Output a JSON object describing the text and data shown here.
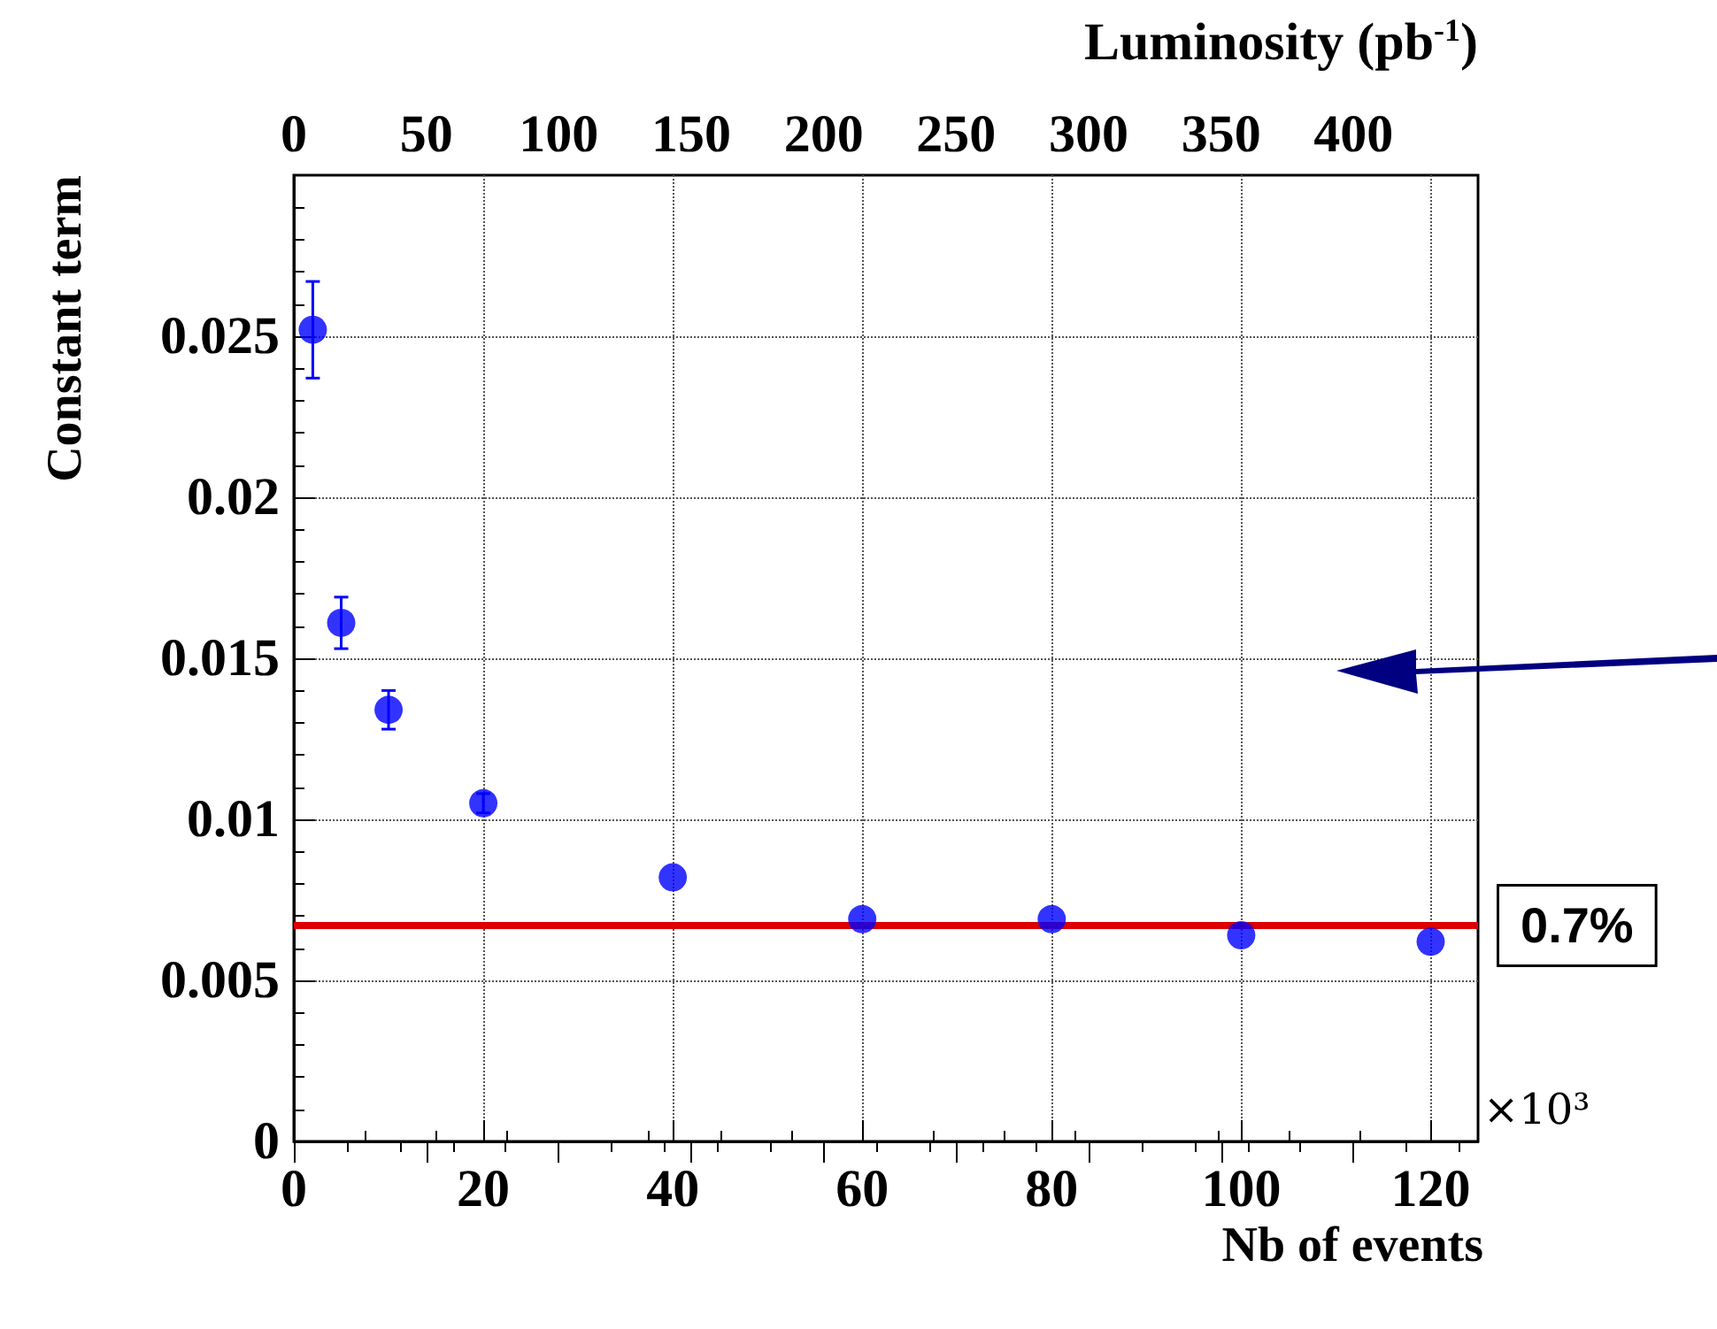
{
  "chart_data": {
    "type": "scatter",
    "xlabel": "Nb of events",
    "ylabel": "Constant term",
    "x2label": "Luminosity (pb$^{-1}$)",
    "annotations": [
      "×10³"
    ],
    "x": [
      2,
      5,
      10,
      20,
      40,
      60,
      80,
      100,
      120
    ],
    "series": [
      {
        "color": "#0000ff",
        "values": [
          0.0252,
          0.0161,
          0.0134,
          0.0105,
          0.0082,
          0.0069,
          0.0069,
          0.0064,
          0.0062
        ],
        "errors": [
          0.0015,
          0.0008,
          0.0006,
          0.0003,
          null,
          null,
          null,
          null,
          null
        ]
      }
    ],
    "xlim": [
      0,
      125
    ],
    "xticks": [
      0,
      20,
      40,
      60,
      80,
      100,
      120
    ],
    "x2lim": [
      0,
      447
    ],
    "x2ticks": [
      0,
      50,
      100,
      150,
      200,
      250,
      300,
      350,
      400
    ],
    "ylim": [
      0,
      0.03
    ],
    "yticks": [
      0,
      0.005,
      0.01,
      0.015,
      0.02,
      0.025
    ],
    "ref_lines": [
      {
        "axis": "y",
        "value": 0.0067,
        "label": "0.7%",
        "color": "#dd0000"
      }
    ],
    "grid": true,
    "marker": "circle"
  }
}
